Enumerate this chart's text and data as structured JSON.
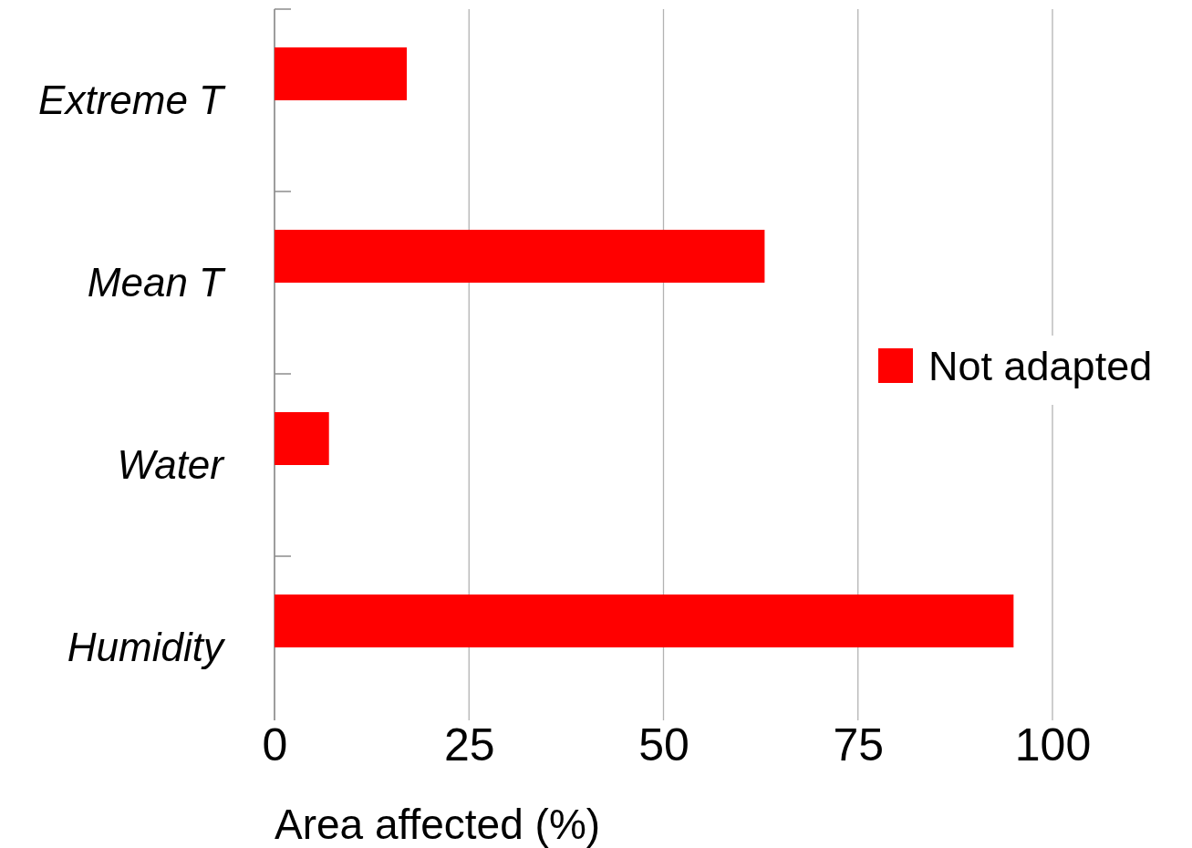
{
  "chart_data": {
    "type": "bar",
    "orientation": "horizontal",
    "categories": [
      "Extreme T",
      "Mean T",
      "Water",
      "Humidity"
    ],
    "series": [
      {
        "name": "Not adapted",
        "color": "#ff0000",
        "values": [
          17,
          63,
          7,
          95
        ]
      }
    ],
    "xlabel": "Area affected (%)",
    "xlim": [
      0,
      100
    ],
    "xticks": [
      0,
      25,
      50,
      75,
      100
    ],
    "grid": "x",
    "legend": "right"
  }
}
